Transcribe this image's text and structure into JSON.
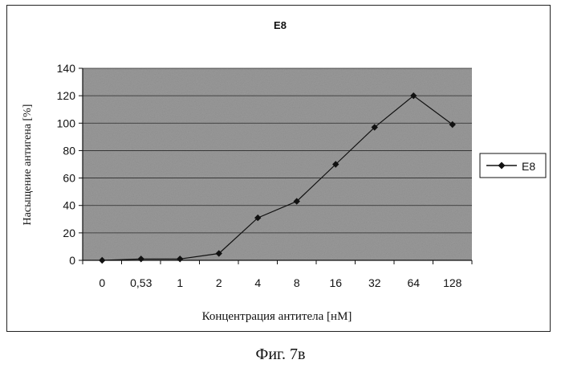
{
  "chart_data": {
    "type": "line",
    "title": "E8",
    "xlabel": "Концентрация антитела [нМ]",
    "ylabel": "Насыщение антигена [%]",
    "categories": [
      "0",
      "0,53",
      "1",
      "2",
      "4",
      "8",
      "16",
      "32",
      "64",
      "128"
    ],
    "series": [
      {
        "name": "E8",
        "values": [
          0,
          1,
          1,
          5,
          31,
          43,
          70,
          97,
          120,
          99
        ]
      }
    ],
    "ylim": [
      0,
      140
    ],
    "yticks": [
      0,
      20,
      40,
      60,
      80,
      100,
      120,
      140
    ],
    "grid": true,
    "legend_position": "right",
    "colors": {
      "plot_bg": "#9a9a9a",
      "line": "#111111",
      "grid": "#2a2a2a"
    }
  },
  "caption": "Фиг. 7в"
}
